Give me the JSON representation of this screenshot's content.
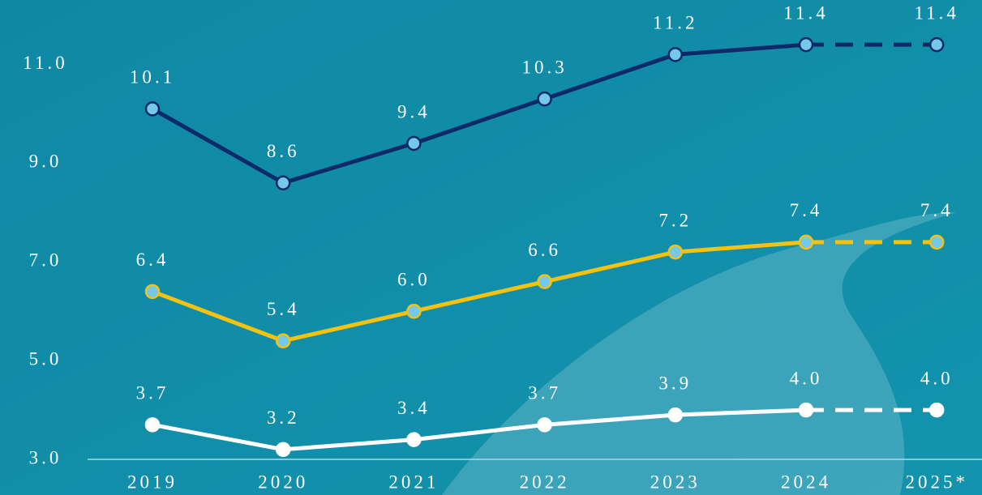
{
  "chart_data": {
    "type": "line",
    "categories": [
      "2019",
      "2020",
      "2021",
      "2022",
      "2023",
      "2024",
      "2025*"
    ],
    "series": [
      {
        "color": "#0c2a68",
        "marker_fill": "#74c8ea",
        "values": [
          10.1,
          8.6,
          9.4,
          10.3,
          11.2,
          11.4,
          11.4
        ],
        "value_labels": [
          "10.1",
          "8.6",
          "9.4",
          "10.3",
          "11.2",
          "11.4",
          "11.4"
        ]
      },
      {
        "color": "#f4c20f",
        "marker_fill": "#74c8ea",
        "values": [
          6.4,
          5.4,
          6.0,
          6.6,
          7.2,
          7.4,
          7.4
        ],
        "value_labels": [
          "6.4",
          "5.4",
          "6.0",
          "6.6",
          "7.2",
          "7.4",
          "7.4"
        ]
      },
      {
        "color": "#ffffff",
        "marker_fill": "#ffffff",
        "values": [
          3.7,
          3.2,
          3.4,
          3.7,
          3.9,
          4.0,
          4.0
        ],
        "value_labels": [
          "3.7",
          "3.2",
          "3.4",
          "3.7",
          "3.9",
          "4.0",
          "4.0"
        ]
      }
    ],
    "dashed_last_segment": true,
    "ylim": [
      3.0,
      12.3
    ],
    "yticks": [
      {
        "value": 3,
        "label": "3.0"
      },
      {
        "value": 5,
        "label": "5.0"
      },
      {
        "value": 7,
        "label": "7.0"
      },
      {
        "value": 9,
        "label": "9.0"
      },
      {
        "value": 11,
        "label": "11.0"
      }
    ],
    "grid": false
  }
}
